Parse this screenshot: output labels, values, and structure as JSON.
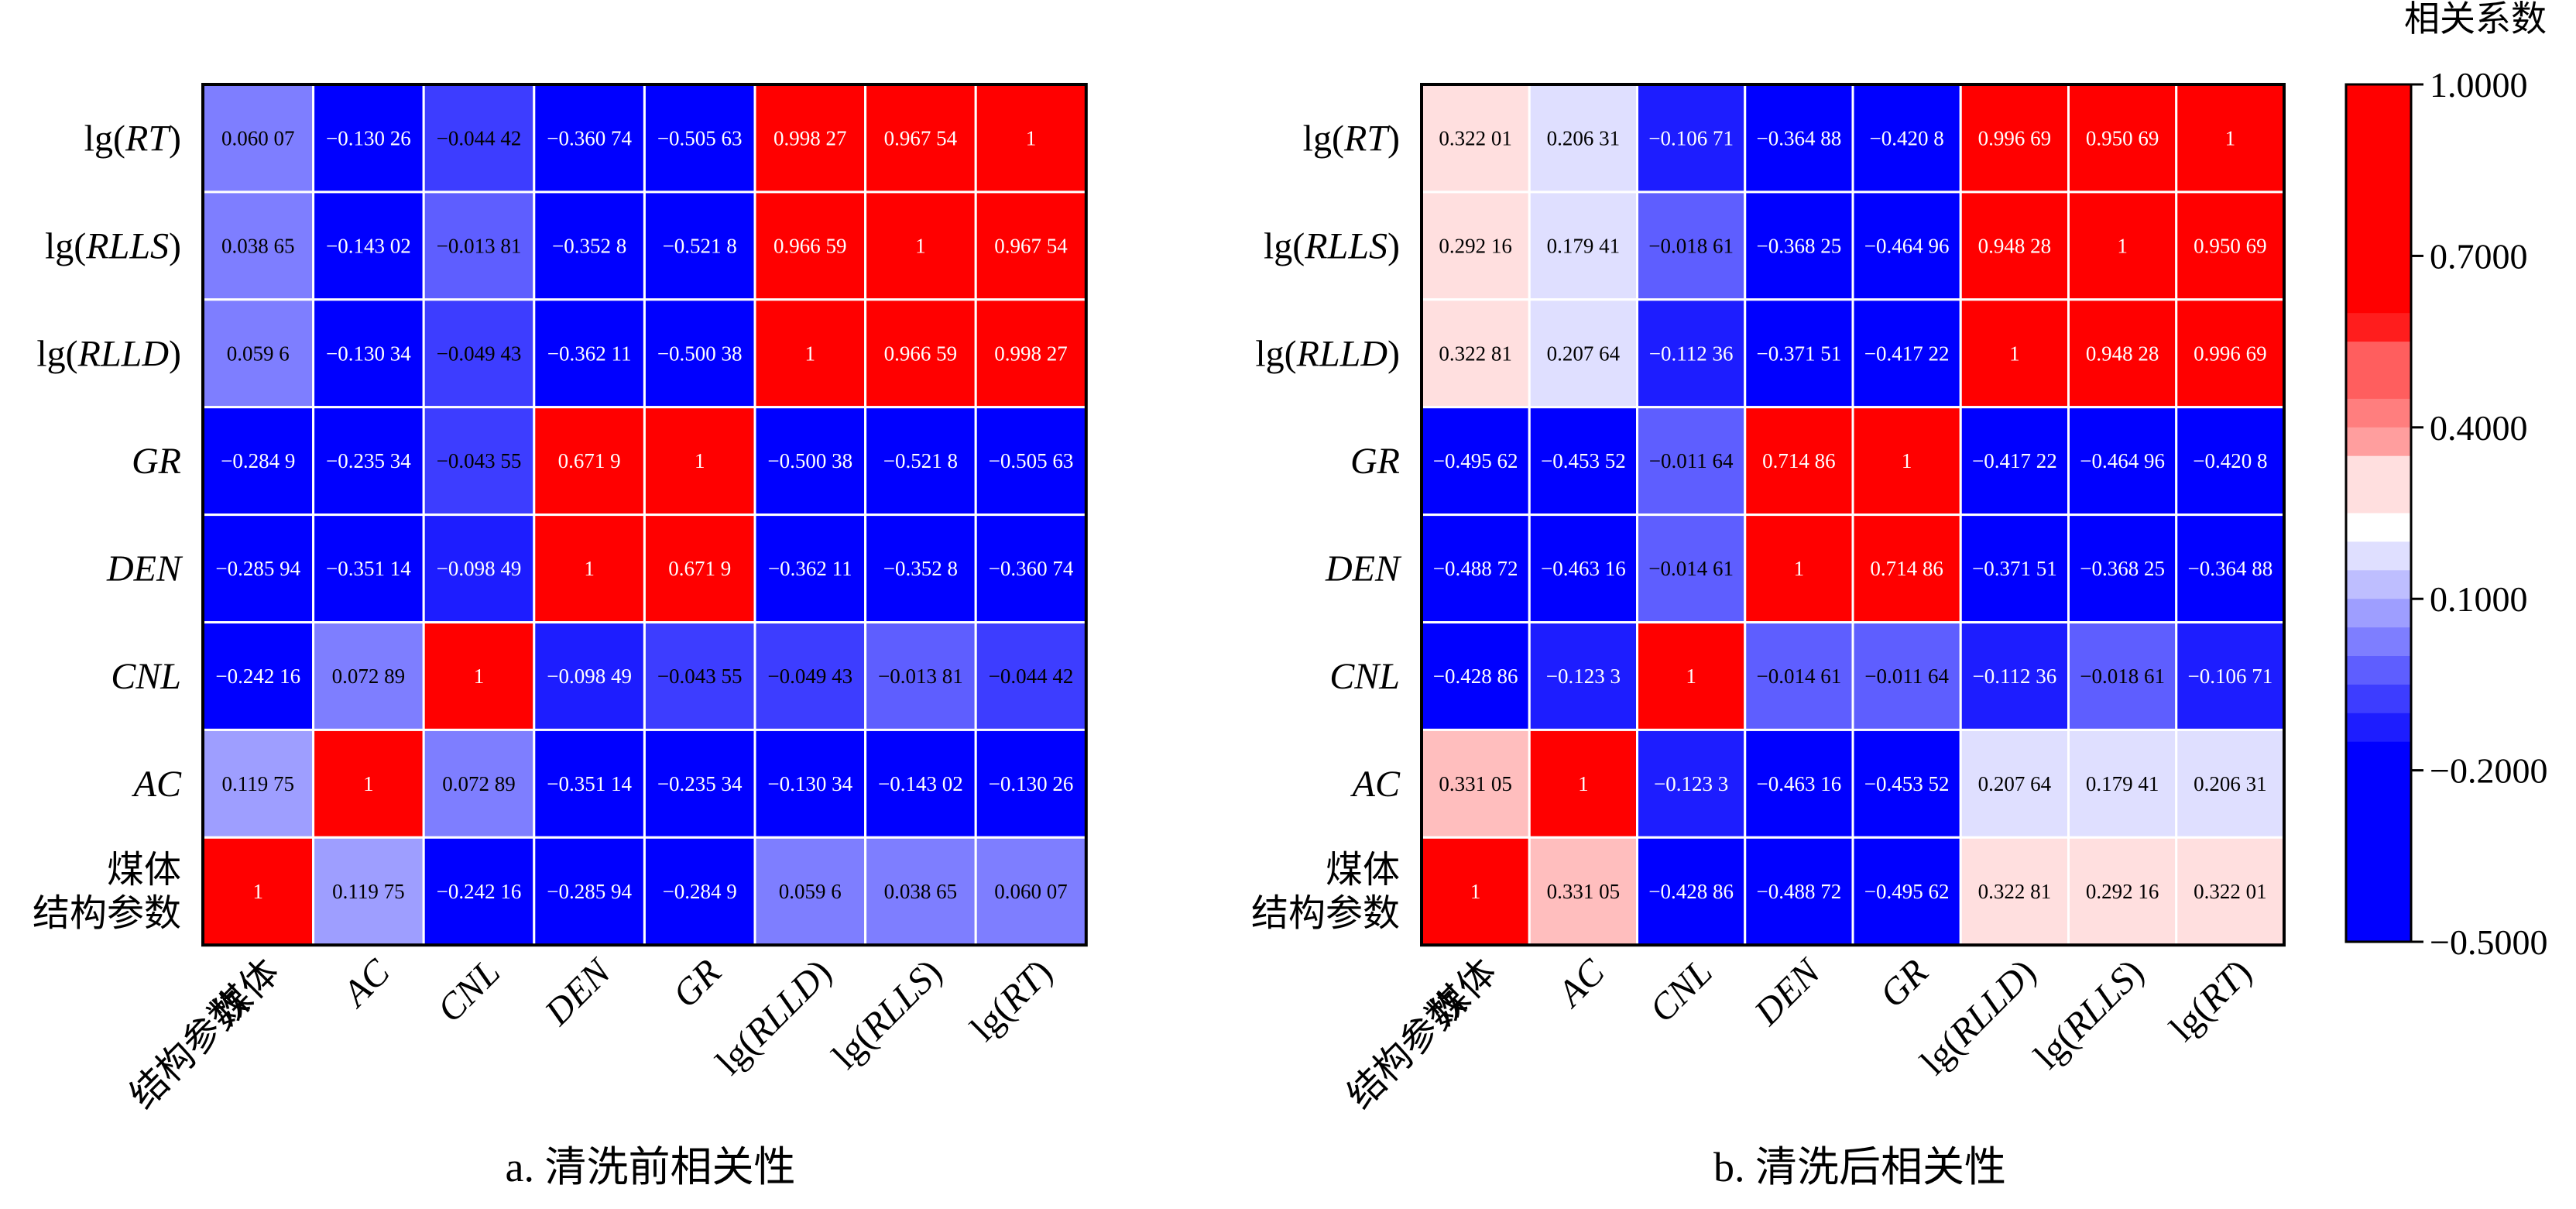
{
  "chart_data": [
    {
      "type": "heatmap",
      "caption": "a. 清洗前相关性",
      "rows": [
        "lg(RT)",
        "lg(RLLS)",
        "lg(RLLD)",
        "GR",
        "DEN",
        "CNL",
        "AC",
        "煤体\n结构参数"
      ],
      "columns": [
        "煤体\n结构参数",
        "AC",
        "CNL",
        "DEN",
        "GR",
        "lg(RLLD)",
        "lg(RLLS)",
        "lg(RT)"
      ],
      "values": [
        [
          0.06007,
          -0.13026,
          -0.04442,
          -0.36074,
          -0.50563,
          0.99827,
          0.96754,
          1
        ],
        [
          0.03865,
          -0.14302,
          -0.01381,
          -0.3528,
          -0.5218,
          0.96659,
          1,
          0.96754
        ],
        [
          0.0596,
          -0.13034,
          -0.04943,
          -0.36211,
          -0.50038,
          1,
          0.96659,
          0.99827
        ],
        [
          -0.2849,
          -0.23534,
          -0.04355,
          0.6719,
          1,
          -0.50038,
          -0.5218,
          -0.50563
        ],
        [
          -0.28594,
          -0.35114,
          -0.09849,
          1,
          0.6719,
          -0.36211,
          -0.3528,
          -0.36074
        ],
        [
          -0.24216,
          0.07289,
          1,
          -0.09849,
          -0.04355,
          -0.04943,
          -0.01381,
          -0.04442
        ],
        [
          0.11975,
          1,
          0.07289,
          -0.35114,
          -0.23534,
          -0.13034,
          -0.14302,
          -0.13026
        ],
        [
          1,
          0.11975,
          -0.24216,
          -0.28594,
          -0.2849,
          0.0596,
          0.03865,
          0.06007
        ]
      ],
      "labels": [
        [
          "0.060 07",
          "−0.130 26",
          "−0.044 42",
          "−0.360 74",
          "−0.505 63",
          "0.998 27",
          "0.967 54",
          "1"
        ],
        [
          "0.038 65",
          "−0.143 02",
          "−0.013 81",
          "−0.352 8",
          "−0.521 8",
          "0.966 59",
          "1",
          "0.967 54"
        ],
        [
          "0.059 6",
          "−0.130 34",
          "−0.049 43",
          "−0.362 11",
          "−0.500 38",
          "1",
          "0.966 59",
          "0.998 27"
        ],
        [
          "−0.284 9",
          "−0.235 34",
          "−0.043 55",
          "0.671 9",
          "1",
          "−0.500 38",
          "−0.521 8",
          "−0.505 63"
        ],
        [
          "−0.285 94",
          "−0.351 14",
          "−0.098 49",
          "1",
          "0.671 9",
          "−0.362 11",
          "−0.352 8",
          "−0.360 74"
        ],
        [
          "−0.242 16",
          "0.072 89",
          "1",
          "−0.098 49",
          "−0.043 55",
          "−0.049 43",
          "−0.013 81",
          "−0.044 42"
        ],
        [
          "0.119 75",
          "1",
          "0.072 89",
          "−0.351 14",
          "−0.235 34",
          "−0.130 34",
          "−0.143 02",
          "−0.130 26"
        ],
        [
          "1",
          "0.119 75",
          "−0.242 16",
          "−0.285 94",
          "−0.284 9",
          "0.059 6",
          "0.038 65",
          "0.060 07"
        ]
      ],
      "value_range": [
        -0.5,
        1.0
      ]
    },
    {
      "type": "heatmap",
      "caption": "b. 清洗后相关性",
      "rows": [
        "lg(RT)",
        "lg(RLLS)",
        "lg(RLLD)",
        "GR",
        "DEN",
        "CNL",
        "AC",
        "煤体\n结构参数"
      ],
      "columns": [
        "煤体\n结构参数",
        "AC",
        "CNL",
        "DEN",
        "GR",
        "lg(RLLD)",
        "lg(RLLS)",
        "lg(RT)"
      ],
      "values": [
        [
          0.32201,
          0.20631,
          -0.10671,
          -0.36488,
          -0.4208,
          0.99669,
          0.95069,
          1
        ],
        [
          0.29216,
          0.17941,
          -0.01861,
          -0.36825,
          -0.46496,
          0.94828,
          1,
          0.95069
        ],
        [
          0.32281,
          0.20764,
          -0.11236,
          -0.37151,
          -0.41722,
          1,
          0.94828,
          0.99669
        ],
        [
          -0.49562,
          -0.45352,
          -0.01164,
          0.71486,
          1,
          -0.41722,
          -0.46496,
          -0.4208
        ],
        [
          -0.48872,
          -0.46316,
          -0.01461,
          1,
          0.71486,
          -0.37151,
          -0.36825,
          -0.36488
        ],
        [
          -0.42886,
          -0.1233,
          1,
          -0.01461,
          -0.01164,
          -0.11236,
          -0.01861,
          -0.10671
        ],
        [
          0.33105,
          1,
          -0.1233,
          -0.46316,
          -0.45352,
          0.20764,
          0.17941,
          0.20631
        ],
        [
          1,
          0.33105,
          -0.42886,
          -0.48872,
          -0.49562,
          0.32281,
          0.29216,
          0.32201
        ]
      ],
      "labels": [
        [
          "0.322 01",
          "0.206 31",
          "−0.106 71",
          "−0.364 88",
          "−0.420 8",
          "0.996 69",
          "0.950 69",
          "1"
        ],
        [
          "0.292 16",
          "0.179 41",
          "−0.018 61",
          "−0.368 25",
          "−0.464 96",
          "0.948 28",
          "1",
          "0.950 69"
        ],
        [
          "0.322 81",
          "0.207 64",
          "−0.112 36",
          "−0.371 51",
          "−0.417 22",
          "1",
          "0.948 28",
          "0.996 69"
        ],
        [
          "−0.495 62",
          "−0.453 52",
          "−0.011 64",
          "0.714 86",
          "1",
          "−0.417 22",
          "−0.464 96",
          "−0.420 8"
        ],
        [
          "−0.488 72",
          "−0.463 16",
          "−0.014 61",
          "1",
          "0.714 86",
          "−0.371 51",
          "−0.368 25",
          "−0.364 88"
        ],
        [
          "−0.428 86",
          "−0.123 3",
          "1",
          "−0.014 61",
          "−0.011 64",
          "−0.112 36",
          "−0.018 61",
          "−0.106 71"
        ],
        [
          "0.331 05",
          "1",
          "−0.123 3",
          "−0.463 16",
          "−0.453 52",
          "0.207 64",
          "0.179 41",
          "0.206 31"
        ],
        [
          "1",
          "0.331 05",
          "−0.428 86",
          "−0.488 72",
          "−0.495 62",
          "0.322 81",
          "0.292 16",
          "0.322 01"
        ]
      ],
      "value_range": [
        -0.5,
        1.0
      ]
    }
  ],
  "legend": {
    "title": "相关系数",
    "ticks": [
      {
        "value": 1.0,
        "label": "1.0000"
      },
      {
        "value": 0.7,
        "label": "0.7000"
      },
      {
        "value": 0.4,
        "label": "0.4000"
      },
      {
        "value": 0.1,
        "label": "0.1000"
      },
      {
        "value": -0.2,
        "label": "−0.2000"
      },
      {
        "value": -0.5,
        "label": "−0.5000"
      }
    ],
    "colors": {
      "low": "#0000ff",
      "mid": "#ffffff",
      "high": "#ff0000"
    }
  }
}
